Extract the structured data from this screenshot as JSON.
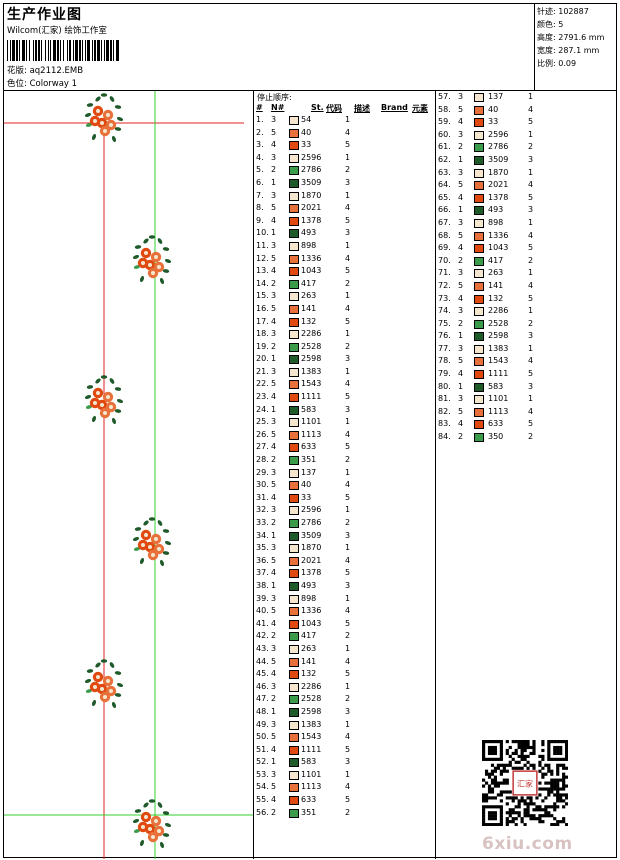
{
  "header": {
    "title": "生产作业图",
    "company": "Wilcom(汇家) 绘饰工作室",
    "design_label": "花版:",
    "design_value": "aq2112.EMB",
    "color_label": "色位:",
    "color_value": "Colorway 1"
  },
  "specs": [
    {
      "label": "针迹:",
      "value": "102887"
    },
    {
      "label": "颜色:",
      "value": "5"
    },
    {
      "label": "高度:",
      "value": "2791.6 mm"
    },
    {
      "label": "宽度:",
      "value": "287.1 mm"
    },
    {
      "label": "比例:",
      "value": "0.09"
    }
  ],
  "table": {
    "stop_sequence_label": "停止顺序:",
    "columns": [
      "#",
      "N#",
      "St.",
      "代码",
      "描述",
      "Brand",
      "元素"
    ]
  },
  "colors": {
    "c1": "#f5e7cf",
    "c2": "#e8703a",
    "c3": "#e04a10",
    "c4": "#3a9b4a",
    "c5": "#1e5a2a"
  },
  "threads_col1": [
    {
      "idx": "1.",
      "needle": "3",
      "code": "54",
      "brand": "1",
      "color": "c1"
    },
    {
      "idx": "2.",
      "needle": "5",
      "code": "40",
      "brand": "4",
      "color": "c2"
    },
    {
      "idx": "3.",
      "needle": "4",
      "code": "33",
      "brand": "5",
      "color": "c3"
    },
    {
      "idx": "4.",
      "needle": "3",
      "code": "2596",
      "brand": "1",
      "color": "c1"
    },
    {
      "idx": "5.",
      "needle": "2",
      "code": "2786",
      "brand": "2",
      "color": "c4"
    },
    {
      "idx": "6.",
      "needle": "1",
      "code": "3509",
      "brand": "3",
      "color": "c5"
    },
    {
      "idx": "7.",
      "needle": "3",
      "code": "1870",
      "brand": "1",
      "color": "c1"
    },
    {
      "idx": "8.",
      "needle": "5",
      "code": "2021",
      "brand": "4",
      "color": "c2"
    },
    {
      "idx": "9.",
      "needle": "4",
      "code": "1378",
      "brand": "5",
      "color": "c3"
    },
    {
      "idx": "10.",
      "needle": "1",
      "code": "493",
      "brand": "3",
      "color": "c5"
    },
    {
      "idx": "11.",
      "needle": "3",
      "code": "898",
      "brand": "1",
      "color": "c1"
    },
    {
      "idx": "12.",
      "needle": "5",
      "code": "1336",
      "brand": "4",
      "color": "c2"
    },
    {
      "idx": "13.",
      "needle": "4",
      "code": "1043",
      "brand": "5",
      "color": "c3"
    },
    {
      "idx": "14.",
      "needle": "2",
      "code": "417",
      "brand": "2",
      "color": "c4"
    },
    {
      "idx": "15.",
      "needle": "3",
      "code": "263",
      "brand": "1",
      "color": "c1"
    },
    {
      "idx": "16.",
      "needle": "5",
      "code": "141",
      "brand": "4",
      "color": "c2"
    },
    {
      "idx": "17.",
      "needle": "4",
      "code": "132",
      "brand": "5",
      "color": "c3"
    },
    {
      "idx": "18.",
      "needle": "3",
      "code": "2286",
      "brand": "1",
      "color": "c1"
    },
    {
      "idx": "19.",
      "needle": "2",
      "code": "2528",
      "brand": "2",
      "color": "c4"
    },
    {
      "idx": "20.",
      "needle": "1",
      "code": "2598",
      "brand": "3",
      "color": "c5"
    },
    {
      "idx": "21.",
      "needle": "3",
      "code": "1383",
      "brand": "1",
      "color": "c1"
    },
    {
      "idx": "22.",
      "needle": "5",
      "code": "1543",
      "brand": "4",
      "color": "c2"
    },
    {
      "idx": "23.",
      "needle": "4",
      "code": "1111",
      "brand": "5",
      "color": "c3"
    },
    {
      "idx": "24.",
      "needle": "1",
      "code": "583",
      "brand": "3",
      "color": "c5"
    },
    {
      "idx": "25.",
      "needle": "3",
      "code": "1101",
      "brand": "1",
      "color": "c1"
    },
    {
      "idx": "26.",
      "needle": "5",
      "code": "1113",
      "brand": "4",
      "color": "c2"
    },
    {
      "idx": "27.",
      "needle": "4",
      "code": "633",
      "brand": "5",
      "color": "c3"
    },
    {
      "idx": "28.",
      "needle": "2",
      "code": "351",
      "brand": "2",
      "color": "c4"
    },
    {
      "idx": "29.",
      "needle": "3",
      "code": "137",
      "brand": "1",
      "color": "c1"
    },
    {
      "idx": "30.",
      "needle": "5",
      "code": "40",
      "brand": "4",
      "color": "c2"
    },
    {
      "idx": "31.",
      "needle": "4",
      "code": "33",
      "brand": "5",
      "color": "c3"
    },
    {
      "idx": "32.",
      "needle": "3",
      "code": "2596",
      "brand": "1",
      "color": "c1"
    },
    {
      "idx": "33.",
      "needle": "2",
      "code": "2786",
      "brand": "2",
      "color": "c4"
    },
    {
      "idx": "34.",
      "needle": "1",
      "code": "3509",
      "brand": "3",
      "color": "c5"
    },
    {
      "idx": "35.",
      "needle": "3",
      "code": "1870",
      "brand": "1",
      "color": "c1"
    },
    {
      "idx": "36.",
      "needle": "5",
      "code": "2021",
      "brand": "4",
      "color": "c2"
    },
    {
      "idx": "37.",
      "needle": "4",
      "code": "1378",
      "brand": "5",
      "color": "c3"
    },
    {
      "idx": "38.",
      "needle": "1",
      "code": "493",
      "brand": "3",
      "color": "c5"
    },
    {
      "idx": "39.",
      "needle": "3",
      "code": "898",
      "brand": "1",
      "color": "c1"
    },
    {
      "idx": "40.",
      "needle": "5",
      "code": "1336",
      "brand": "4",
      "color": "c2"
    },
    {
      "idx": "41.",
      "needle": "4",
      "code": "1043",
      "brand": "5",
      "color": "c3"
    },
    {
      "idx": "42.",
      "needle": "2",
      "code": "417",
      "brand": "2",
      "color": "c4"
    },
    {
      "idx": "43.",
      "needle": "3",
      "code": "263",
      "brand": "1",
      "color": "c1"
    },
    {
      "idx": "44.",
      "needle": "5",
      "code": "141",
      "brand": "4",
      "color": "c2"
    },
    {
      "idx": "45.",
      "needle": "4",
      "code": "132",
      "brand": "5",
      "color": "c3"
    },
    {
      "idx": "46.",
      "needle": "3",
      "code": "2286",
      "brand": "1",
      "color": "c1"
    },
    {
      "idx": "47.",
      "needle": "2",
      "code": "2528",
      "brand": "2",
      "color": "c4"
    },
    {
      "idx": "48.",
      "needle": "1",
      "code": "2598",
      "brand": "3",
      "color": "c5"
    },
    {
      "idx": "49.",
      "needle": "3",
      "code": "1383",
      "brand": "1",
      "color": "c1"
    },
    {
      "idx": "50.",
      "needle": "5",
      "code": "1543",
      "brand": "4",
      "color": "c2"
    },
    {
      "idx": "51.",
      "needle": "4",
      "code": "1111",
      "brand": "5",
      "color": "c3"
    },
    {
      "idx": "52.",
      "needle": "1",
      "code": "583",
      "brand": "3",
      "color": "c5"
    },
    {
      "idx": "53.",
      "needle": "3",
      "code": "1101",
      "brand": "1",
      "color": "c1"
    },
    {
      "idx": "54.",
      "needle": "5",
      "code": "1113",
      "brand": "4",
      "color": "c2"
    },
    {
      "idx": "55.",
      "needle": "4",
      "code": "633",
      "brand": "5",
      "color": "c3"
    },
    {
      "idx": "56.",
      "needle": "2",
      "code": "351",
      "brand": "2",
      "color": "c4"
    }
  ],
  "threads_col2": [
    {
      "idx": "57.",
      "needle": "3",
      "code": "137",
      "brand": "1",
      "color": "c1"
    },
    {
      "idx": "58.",
      "needle": "5",
      "code": "40",
      "brand": "4",
      "color": "c2"
    },
    {
      "idx": "59.",
      "needle": "4",
      "code": "33",
      "brand": "5",
      "color": "c3"
    },
    {
      "idx": "60.",
      "needle": "3",
      "code": "2596",
      "brand": "1",
      "color": "c1"
    },
    {
      "idx": "61.",
      "needle": "2",
      "code": "2786",
      "brand": "2",
      "color": "c4"
    },
    {
      "idx": "62.",
      "needle": "1",
      "code": "3509",
      "brand": "3",
      "color": "c5"
    },
    {
      "idx": "63.",
      "needle": "3",
      "code": "1870",
      "brand": "1",
      "color": "c1"
    },
    {
      "idx": "64.",
      "needle": "5",
      "code": "2021",
      "brand": "4",
      "color": "c2"
    },
    {
      "idx": "65.",
      "needle": "4",
      "code": "1378",
      "brand": "5",
      "color": "c3"
    },
    {
      "idx": "66.",
      "needle": "1",
      "code": "493",
      "brand": "3",
      "color": "c5"
    },
    {
      "idx": "67.",
      "needle": "3",
      "code": "898",
      "brand": "1",
      "color": "c1"
    },
    {
      "idx": "68.",
      "needle": "5",
      "code": "1336",
      "brand": "4",
      "color": "c2"
    },
    {
      "idx": "69.",
      "needle": "4",
      "code": "1043",
      "brand": "5",
      "color": "c3"
    },
    {
      "idx": "70.",
      "needle": "2",
      "code": "417",
      "brand": "2",
      "color": "c4"
    },
    {
      "idx": "71.",
      "needle": "3",
      "code": "263",
      "brand": "1",
      "color": "c1"
    },
    {
      "idx": "72.",
      "needle": "5",
      "code": "141",
      "brand": "4",
      "color": "c2"
    },
    {
      "idx": "73.",
      "needle": "4",
      "code": "132",
      "brand": "5",
      "color": "c3"
    },
    {
      "idx": "74.",
      "needle": "3",
      "code": "2286",
      "brand": "1",
      "color": "c1"
    },
    {
      "idx": "75.",
      "needle": "2",
      "code": "2528",
      "brand": "2",
      "color": "c4"
    },
    {
      "idx": "76.",
      "needle": "1",
      "code": "2598",
      "brand": "3",
      "color": "c5"
    },
    {
      "idx": "77.",
      "needle": "3",
      "code": "1383",
      "brand": "1",
      "color": "c1"
    },
    {
      "idx": "78.",
      "needle": "5",
      "code": "1543",
      "brand": "4",
      "color": "c2"
    },
    {
      "idx": "79.",
      "needle": "4",
      "code": "1111",
      "brand": "5",
      "color": "c3"
    },
    {
      "idx": "80.",
      "needle": "1",
      "code": "583",
      "brand": "3",
      "color": "c5"
    },
    {
      "idx": "81.",
      "needle": "3",
      "code": "1101",
      "brand": "1",
      "color": "c1"
    },
    {
      "idx": "82.",
      "needle": "5",
      "code": "1113",
      "brand": "4",
      "color": "c2"
    },
    {
      "idx": "83.",
      "needle": "4",
      "code": "633",
      "brand": "5",
      "color": "c3"
    },
    {
      "idx": "84.",
      "needle": "2",
      "code": "350",
      "brand": "2",
      "color": "c4"
    }
  ],
  "qr_seal_text": "汇家",
  "watermark": "6xiu.com"
}
